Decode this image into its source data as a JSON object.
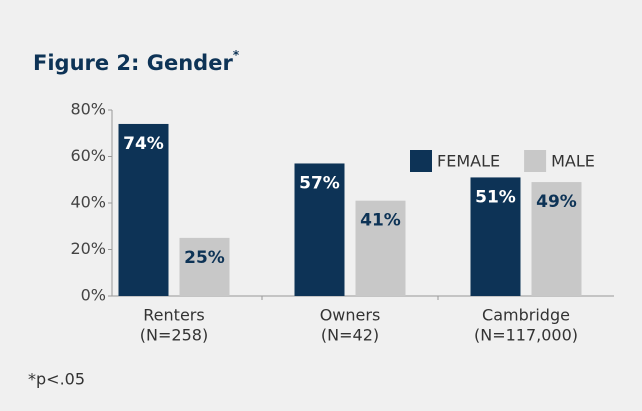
{
  "chart_data": {
    "type": "bar",
    "title": "Figure 2: Gender",
    "title_mark": "*",
    "footnote": "*p<.05",
    "categories": [
      [
        "Renters",
        "(N=258)"
      ],
      [
        "Owners",
        "(N=42)"
      ],
      [
        "Cambridge",
        "(N=117,000)"
      ]
    ],
    "series": [
      {
        "name": "FEMALE",
        "color": "#0d3356",
        "values": [
          74,
          57,
          51
        ],
        "value_labels": [
          "74%",
          "57%",
          "51%"
        ]
      },
      {
        "name": "MALE",
        "color": "#c8c8c8",
        "values": [
          25,
          41,
          49
        ],
        "value_labels": [
          "25%",
          "41%",
          "49%"
        ]
      }
    ],
    "ylim": [
      0,
      80
    ],
    "yticks": [
      {
        "value": 0,
        "label": "0%"
      },
      {
        "value": 20,
        "label": "20%"
      },
      {
        "value": 40,
        "label": "40%"
      },
      {
        "value": 60,
        "label": "60%"
      },
      {
        "value": 80,
        "label": "80%"
      }
    ],
    "legend": "upper right"
  }
}
